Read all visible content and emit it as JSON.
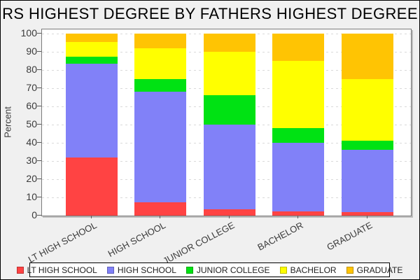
{
  "chart_data": {
    "type": "bar",
    "stacked": true,
    "title": "RS HIGHEST DEGREE BY FATHERS HIGHEST DEGREE",
    "xlabel": "",
    "ylabel": "Percent",
    "ylim": [
      0,
      100
    ],
    "yticks": [
      0,
      10,
      20,
      30,
      40,
      50,
      60,
      70,
      80,
      90,
      100
    ],
    "grid": true,
    "legend_position": "bottom",
    "categories": [
      "LT HIGH SCHOOL",
      "HIGH SCHOOL",
      "JUNIOR COLLEGE",
      "BACHELOR",
      "GRADUATE"
    ],
    "series": [
      {
        "name": "LT HIGH SCHOOL",
        "color": "#ff4343",
        "values": [
          32,
          7.5,
          3.5,
          2.5,
          2
        ]
      },
      {
        "name": "HIGH SCHOOL",
        "color": "#8181f8",
        "values": [
          51.5,
          60.5,
          46.5,
          37.5,
          34
        ]
      },
      {
        "name": "JUNIOR COLLEGE",
        "color": "#00e213",
        "values": [
          4,
          7,
          16,
          8,
          5
        ]
      },
      {
        "name": "BACHELOR",
        "color": "#ffff00",
        "values": [
          8,
          17,
          24,
          37,
          34
        ]
      },
      {
        "name": "GRADUATE",
        "color": "#ffc403",
        "values": [
          4.5,
          8,
          10,
          15,
          25
        ]
      }
    ]
  }
}
